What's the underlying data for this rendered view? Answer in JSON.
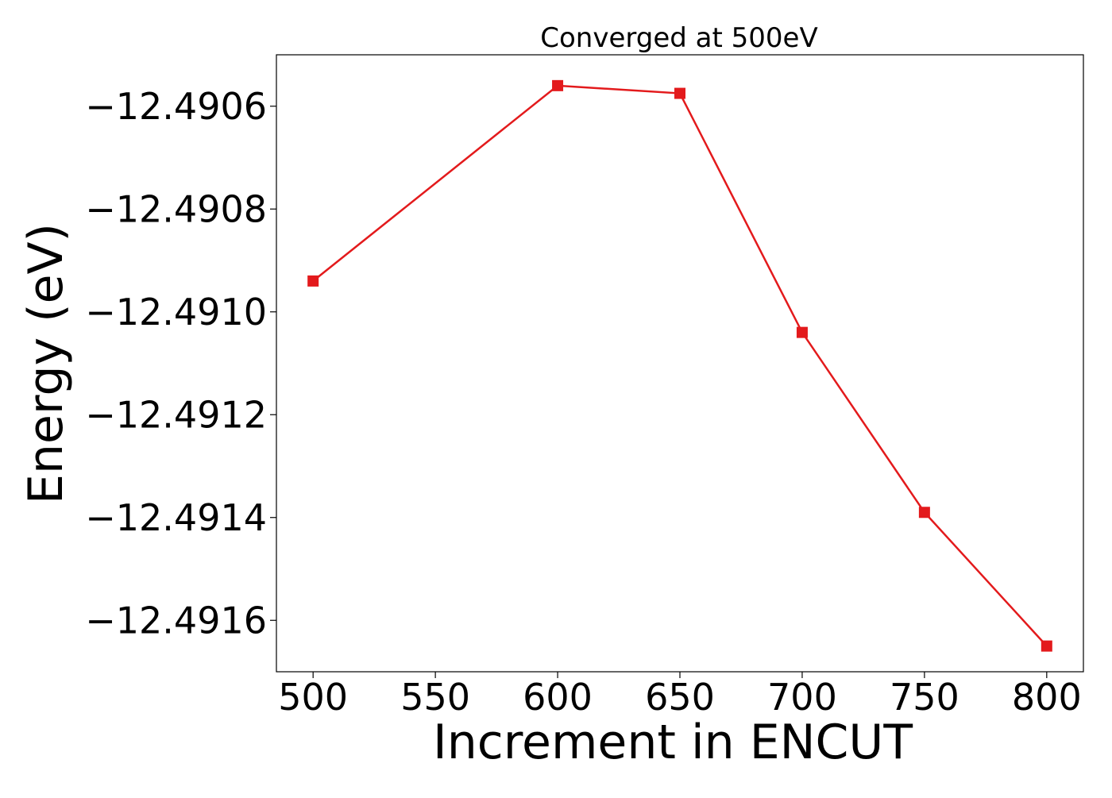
{
  "chart_data": {
    "type": "line",
    "title": "Converged at 500eV",
    "xlabel": "Increment in ENCUT",
    "ylabel": "Energy (eV)",
    "x": [
      500,
      600,
      650,
      700,
      750,
      800
    ],
    "series": [
      {
        "values": [
          -12.49094,
          -12.49056,
          -12.490575,
          -12.49104,
          -12.49139,
          -12.49165
        ],
        "color": "#e31a1c",
        "marker": "square"
      }
    ],
    "xticks": [
      500,
      550,
      600,
      650,
      700,
      750,
      800
    ],
    "xtick_labels": [
      "500",
      "550",
      "600",
      "650",
      "700",
      "750",
      "800"
    ],
    "yticks": [
      -12.4906,
      -12.4908,
      -12.491,
      -12.4912,
      -12.4914,
      -12.4916
    ],
    "ytick_labels": [
      "−12.4906",
      "−12.4908",
      "−12.4910",
      "−12.4912",
      "−12.4914",
      "−12.4916"
    ],
    "xlim": [
      485,
      815
    ],
    "ylim": [
      -12.4917,
      -12.4905
    ],
    "grid": false,
    "legend": "none"
  }
}
